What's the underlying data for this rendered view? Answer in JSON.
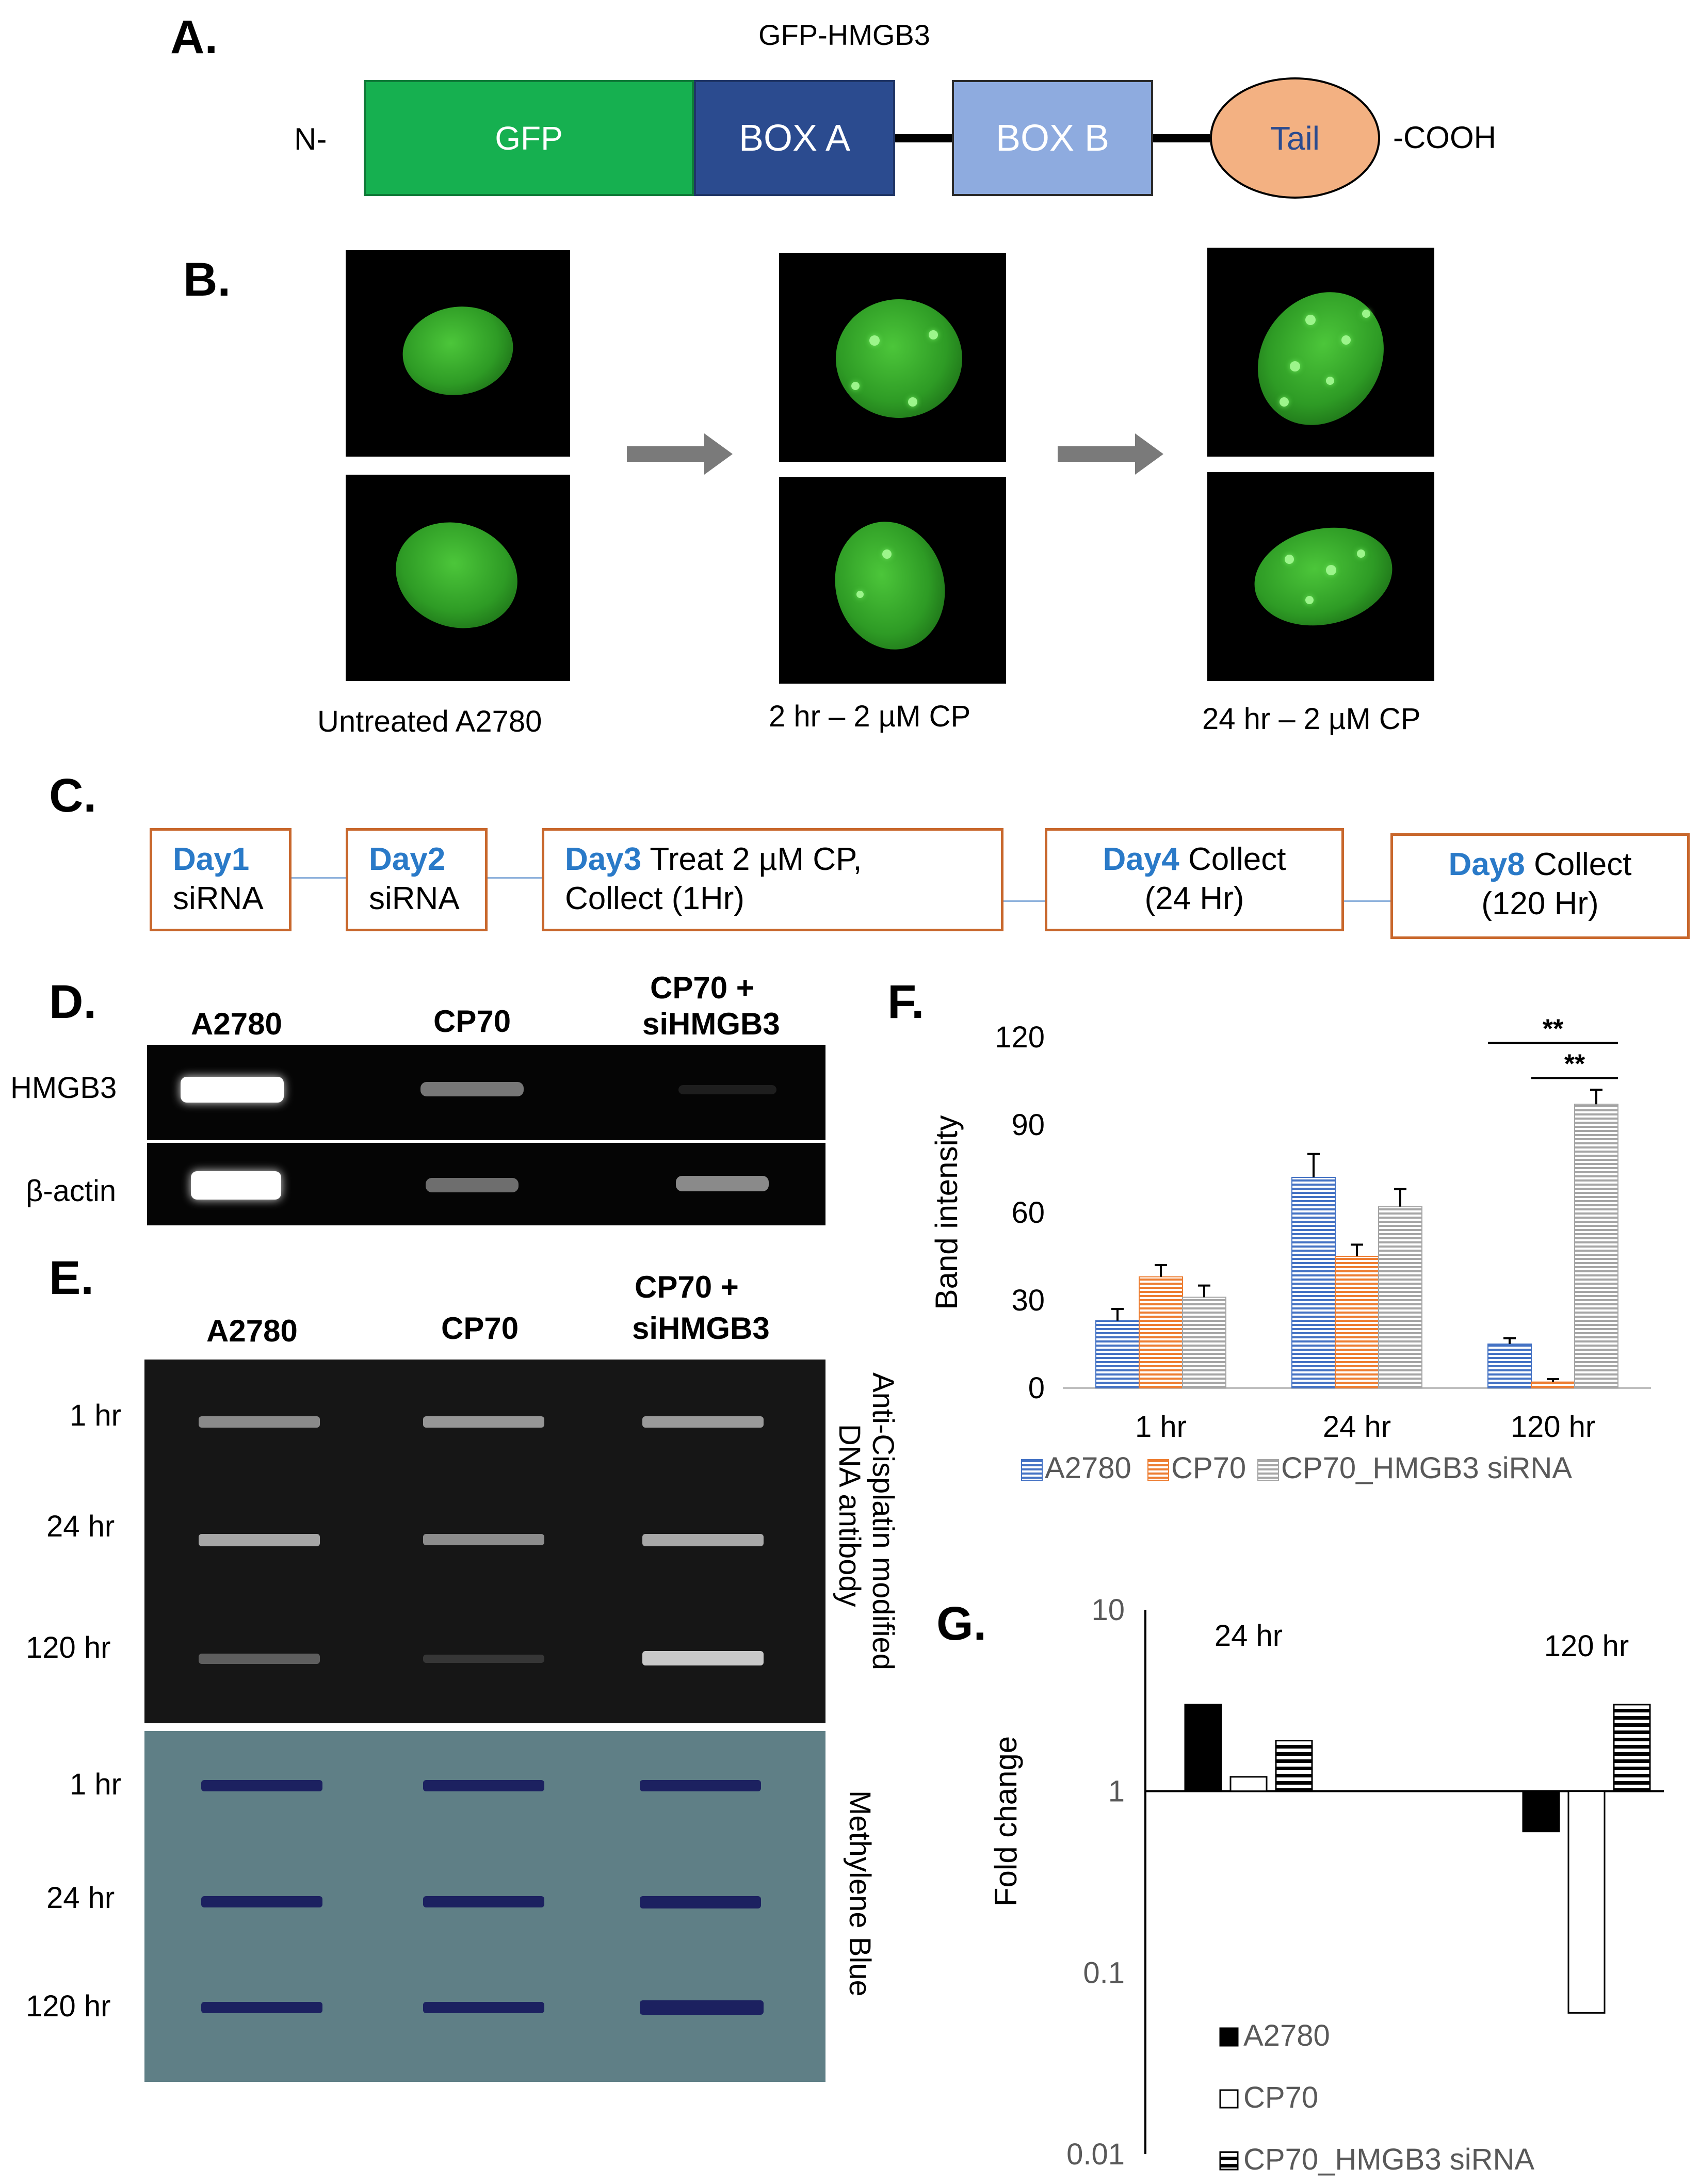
{
  "panels": {
    "a": {
      "letter": "A.",
      "title": "GFP-HMGB3",
      "n_term": "N-",
      "c_term": "-COOH",
      "domains": [
        {
          "label": "GFP",
          "color": "#16b050"
        },
        {
          "label": "BOX A",
          "color": "#2b4b8f"
        },
        {
          "label": "BOX B",
          "color": "#8eabdf"
        },
        {
          "label": "Tail",
          "color": "#f3b182"
        }
      ]
    },
    "b": {
      "letter": "B.",
      "captions": [
        "Untreated A2780",
        "2 hr – 2 µM CP",
        "24 hr – 2 µM CP"
      ]
    },
    "c": {
      "letter": "C.",
      "steps": [
        {
          "day": "Day1",
          "rest": "",
          "line2": "siRNA"
        },
        {
          "day": "Day2",
          "rest": "",
          "line2": "siRNA"
        },
        {
          "day": "Day3",
          "rest": " Treat 2 µM CP,",
          "line2": "Collect (1Hr)"
        },
        {
          "day": "Day4",
          "rest": " Collect",
          "line2": "(24 Hr)"
        },
        {
          "day": "Day8",
          "rest": " Collect",
          "line2": "(120 Hr)"
        }
      ]
    },
    "d": {
      "letter": "D.",
      "columns": [
        "A2780",
        "CP70",
        "CP70 +",
        "siHMGB3"
      ],
      "rows": [
        "HMGB3",
        "β-actin"
      ]
    },
    "e": {
      "letter": "E.",
      "columns": [
        "A2780",
        "CP70",
        "CP70 +",
        "siHMGB3"
      ],
      "rows": [
        "1 hr",
        "24 hr",
        "120 hr"
      ],
      "side_top_1": "Anti-Cisplatin modified",
      "side_top_2": "DNA antibody",
      "side_bottom": "Methylene Blue"
    },
    "f": {
      "letter": "F."
    },
    "g": {
      "letter": "G."
    }
  },
  "chart_data": [
    {
      "type": "bar",
      "panel": "F",
      "ylabel": "Band intensity",
      "categories": [
        "1 hr",
        "24 hr",
        "120 hr"
      ],
      "ylim": [
        0,
        120
      ],
      "yticks": [
        "0",
        "30",
        "60",
        "90",
        "120"
      ],
      "series": [
        {
          "name": "A2780",
          "color": "#4472c4",
          "values": [
            23,
            72,
            15
          ],
          "errors": [
            4,
            8,
            2
          ]
        },
        {
          "name": "CP70",
          "color": "#ed7d31",
          "values": [
            38,
            45,
            2
          ],
          "errors": [
            4,
            4,
            1
          ]
        },
        {
          "name": "CP70_HMGB3 siRNA",
          "color": "#a5a5a5",
          "values": [
            31,
            62,
            97
          ],
          "errors": [
            4,
            6,
            5
          ]
        }
      ],
      "significance": [
        "**",
        "**"
      ],
      "legend": "bottom"
    },
    {
      "type": "bar",
      "panel": "G",
      "ylabel": "Fold change",
      "scale": "log",
      "ylim": [
        0.01,
        10
      ],
      "yticks": [
        "0.01",
        "0.1",
        "1",
        "10"
      ],
      "categories": [
        "24 hr",
        "120 hr"
      ],
      "series": [
        {
          "name": "A2780",
          "fill": "black",
          "values": [
            3.0,
            0.6
          ]
        },
        {
          "name": "CP70",
          "fill": "white",
          "values": [
            1.2,
            0.06
          ]
        },
        {
          "name": "CP70_HMGB3 siRNA",
          "fill": "striped",
          "values": [
            1.9,
            3.0
          ]
        }
      ],
      "legend": "bottom-right"
    }
  ]
}
